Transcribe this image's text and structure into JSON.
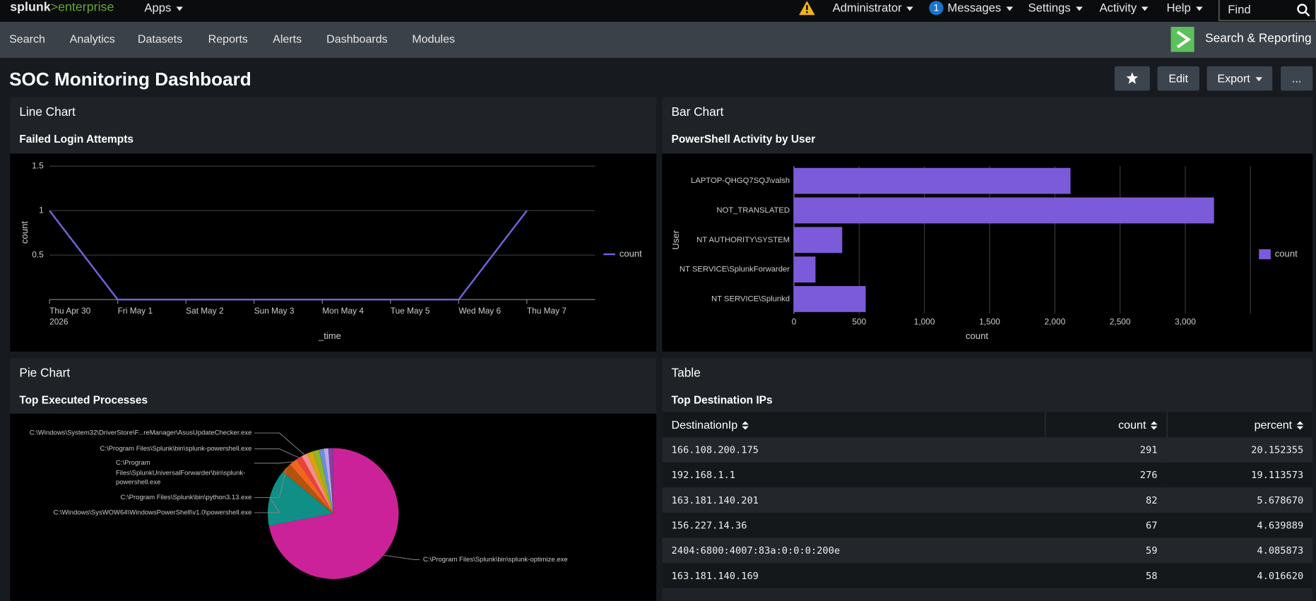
{
  "topbar": {
    "logo_brand": "splunk",
    "logo_product": ">enterprise",
    "apps": "Apps",
    "user": "Administrator",
    "messages_count": 1,
    "messages": "Messages",
    "settings": "Settings",
    "activity": "Activity",
    "help": "Help",
    "find": "Find"
  },
  "appbar": {
    "nav": [
      "Search",
      "Analytics",
      "Datasets",
      "Reports",
      "Alerts",
      "Dashboards",
      "Modules"
    ],
    "app_name": "Search & Reporting"
  },
  "dashboard": {
    "title": "SOC Monitoring Dashboard",
    "buttons": [
      "Edit",
      "Export",
      "..."
    ],
    "panels": [
      "Line Chart",
      "Bar Chart",
      "Pie Chart",
      "Table"
    ]
  },
  "chart_data": [
    {
      "type": "line",
      "title": "Failed Login Attempts",
      "categories": [
        "Thu Apr 30",
        "Fri May 1",
        "Sat May 2",
        "Sun May 3",
        "Mon May 4",
        "Tue May 5",
        "Wed May 6",
        "Thu May 7"
      ],
      "x_year": "2026",
      "series": [
        {
          "name": "count",
          "color": "#7b61e0",
          "values": [
            1,
            0,
            0,
            0,
            0,
            0,
            0,
            1
          ]
        }
      ],
      "ylim": [
        0,
        1.5
      ],
      "yticks": [
        0.5,
        1,
        1.5
      ],
      "grid": true,
      "legend": "right",
      "x_label": "_time",
      "y_label": "count"
    },
    {
      "type": "bar",
      "horizontal": true,
      "title": "PowerShell Activity by User",
      "categories": [
        "LAPTOP-QHGQ7SQJ\\valsh",
        "NOT_TRANSLATED",
        "NT AUTHORITY\\SYSTEM",
        "NT SERVICE\\SplunkForwarder",
        "NT SERVICE\\Splunkd"
      ],
      "series": [
        {
          "name": "count",
          "color": "#7b5bd9",
          "values": [
            2120,
            3220,
            370,
            165,
            550
          ]
        }
      ],
      "xlim": [
        0,
        3500
      ],
      "xticks": [
        0,
        500,
        {
          "value": 1000,
          "label": "1,000"
        },
        {
          "value": 1500,
          "label": "1,500"
        },
        {
          "value": 2000,
          "label": "2,000"
        },
        {
          "value": 2500,
          "label": "2,500"
        },
        {
          "value": 3000,
          "label": "3,000"
        }
      ],
      "grid": true,
      "legend": "right",
      "x_label": "count",
      "y_label": "User"
    },
    {
      "type": "pie",
      "title": "Top Executed Processes",
      "categories": [
        "C:\\Program Files\\Splunk\\bin\\splunk-optimize.exe",
        "C:\\Windows\\SysWOW64\\WindowsPowerShell\\v1.0\\powershell.exe",
        "C:\\Program Files\\Splunk\\bin\\python3.13.exe",
        "C:\\Program Files\\SplunkUniversalForwarder\\bin\\splunk-powershell.exe",
        "C:\\Program Files\\Splunk\\bin\\splunk-powershell.exe",
        "C:\\Windows\\System32\\DriverStore\\F...reManager\\AsusUpdateChecker.exe",
        null,
        null,
        null,
        null,
        null
      ],
      "values": [
        72,
        14,
        2.5,
        2,
        1.5,
        1.5,
        1.5,
        1.5,
        1.2,
        1.1,
        1.2
      ],
      "colors": [
        "#cc2299",
        "#0f8f86",
        "#b4530f",
        "#f0661e",
        "#e8433b",
        "#f58f8f",
        "#d4a507",
        "#8db62c",
        "#6a8fd4",
        "#b8a8f0",
        "#8a3f9c"
      ]
    }
  ],
  "table": {
    "title": "Top Destination IPs",
    "columns": [
      "DestinationIp",
      "count",
      "percent"
    ],
    "rows": [
      [
        "166.108.200.175",
        291,
        "20.152355"
      ],
      [
        "192.168.1.1",
        276,
        "19.113573"
      ],
      [
        "163.181.140.201",
        82,
        "5.678670"
      ],
      [
        "156.227.14.36",
        67,
        "4.639889"
      ],
      [
        "2404:6800:4007:83a:0:0:0:200e",
        59,
        "4.085873"
      ],
      [
        "163.181.140.169",
        58,
        "4.016620"
      ]
    ]
  }
}
